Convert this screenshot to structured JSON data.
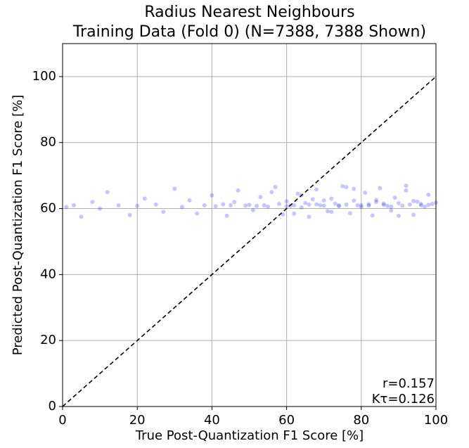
{
  "chart_data": {
    "type": "scatter",
    "title": [
      "Radius Nearest Neighbours",
      "Training Data (Fold 0) (N=7388, 7388 Shown)"
    ],
    "xlabel": "True Post-Quantization F1 Score [%]",
    "ylabel": "Predicted Post-Quantization F1 Score [%]",
    "annotations": [
      "r=0.157",
      "Kτ=0.126"
    ],
    "color": "#0000ff",
    "xlim": [
      0,
      100
    ],
    "ylim": [
      0,
      110
    ],
    "xticks": [
      0,
      20,
      40,
      60,
      80,
      100
    ],
    "yticks": [
      0,
      20,
      40,
      60,
      80,
      100
    ],
    "grid": true,
    "x": [
      1,
      3,
      5,
      8,
      10,
      12,
      15,
      18,
      20,
      22,
      25,
      27,
      30,
      32,
      34,
      36,
      38,
      40,
      41,
      43,
      44,
      46,
      47,
      49,
      50,
      51,
      53,
      54,
      55,
      57,
      58,
      59,
      60,
      61,
      62,
      63,
      64,
      65,
      66,
      67,
      68,
      69,
      70,
      71,
      72,
      73,
      74,
      75,
      76,
      77,
      78,
      79,
      80,
      81,
      82,
      83,
      84,
      85,
      86,
      87,
      88,
      89,
      90,
      91,
      92,
      93,
      94,
      95,
      96,
      97,
      98,
      99,
      45,
      52,
      56,
      62,
      66,
      70,
      74,
      78,
      82,
      86,
      90,
      94,
      98,
      60,
      64,
      68,
      72,
      76,
      80,
      84,
      88,
      92,
      96,
      100
    ],
    "y": [
      60.5,
      61,
      57.5,
      62,
      60,
      65,
      61,
      58,
      60.8,
      63,
      61.2,
      59,
      66,
      60.5,
      62.5,
      58.5,
      61,
      64,
      60.7,
      61.3,
      57.8,
      62,
      65.5,
      60.9,
      61.1,
      59.5,
      63.5,
      61,
      60.6,
      66.5,
      61.4,
      58.2,
      62.2,
      60.8,
      61,
      64.5,
      60.3,
      61.7,
      57.5,
      62.8,
      65.8,
      61,
      60.9,
      59.2,
      63,
      61.5,
      60.7,
      66.8,
      61.2,
      58.6,
      62.4,
      61,
      60.5,
      64.8,
      61.3,
      57.9,
      62.6,
      66.2,
      61.1,
      60.8,
      59.4,
      63.3,
      61.6,
      60.9,
      66.9,
      61.2,
      58.1,
      62.1,
      61,
      60.6,
      64.2,
      61.4,
      61,
      60.8,
      65,
      58.5,
      61.2,
      62.5,
      61,
      66,
      60.9,
      61.5,
      57.8,
      62.3,
      61.1,
      60.7,
      64,
      61.3,
      59,
      66.5,
      61,
      62,
      60.6,
      65.5,
      61.4,
      61.8
    ]
  }
}
